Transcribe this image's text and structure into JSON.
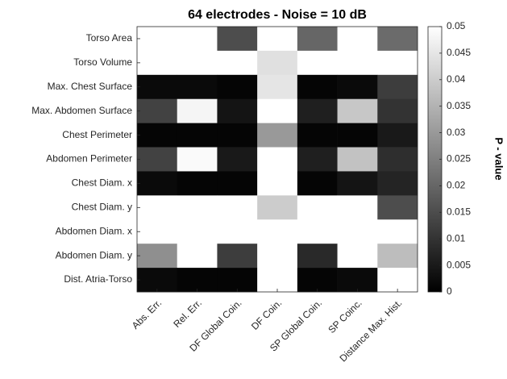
{
  "chart_data": {
    "type": "heatmap",
    "title": "64 electrodes - Noise = 10 dB",
    "rows": [
      "Torso Area",
      "Torso Volume",
      "Max. Chest Surface",
      "Max. Abdomen Surface",
      "Chest Perimeter",
      "Abdomen Perimeter",
      "Chest Diam. x",
      "Chest Diam. y",
      "Abdomen Diam. x",
      "Abdomen Diam. y",
      "Dist. Atria-Torso"
    ],
    "columns": [
      "Abs. Err.",
      "Rel. Err.",
      "DF Global Coin.",
      "DF Coin.",
      "SP Global Coin.",
      "SP Coinc.",
      "Distance Max. Hist."
    ],
    "values": [
      [
        0.05,
        0.05,
        0.015,
        0.05,
        0.02,
        0.05,
        0.021
      ],
      [
        0.05,
        0.05,
        0.05,
        0.044,
        0.05,
        0.05,
        0.05
      ],
      [
        0.002,
        0.002,
        0.001,
        0.045,
        0.001,
        0.002,
        0.012
      ],
      [
        0.013,
        0.048,
        0.004,
        0.05,
        0.006,
        0.039,
        0.01
      ],
      [
        0.001,
        0.001,
        0.001,
        0.03,
        0.001,
        0.001,
        0.005
      ],
      [
        0.013,
        0.049,
        0.005,
        0.05,
        0.006,
        0.038,
        0.009
      ],
      [
        0.002,
        0.001,
        0.001,
        0.05,
        0.001,
        0.004,
        0.007
      ],
      [
        0.05,
        0.05,
        0.05,
        0.04,
        0.05,
        0.05,
        0.015
      ],
      [
        0.05,
        0.05,
        0.05,
        0.05,
        0.05,
        0.05,
        0.05
      ],
      [
        0.028,
        0.05,
        0.012,
        0.05,
        0.008,
        0.05,
        0.037
      ],
      [
        0.002,
        0.001,
        0.001,
        0.05,
        0.001,
        0.002,
        0.05
      ]
    ],
    "colormap": "gray",
    "clim": [
      0,
      0.05
    ],
    "cticks": [
      0,
      0.005,
      0.01,
      0.015,
      0.02,
      0.025,
      0.03,
      0.035,
      0.04,
      0.045,
      0.05
    ],
    "colorbar_label": "P - value"
  }
}
